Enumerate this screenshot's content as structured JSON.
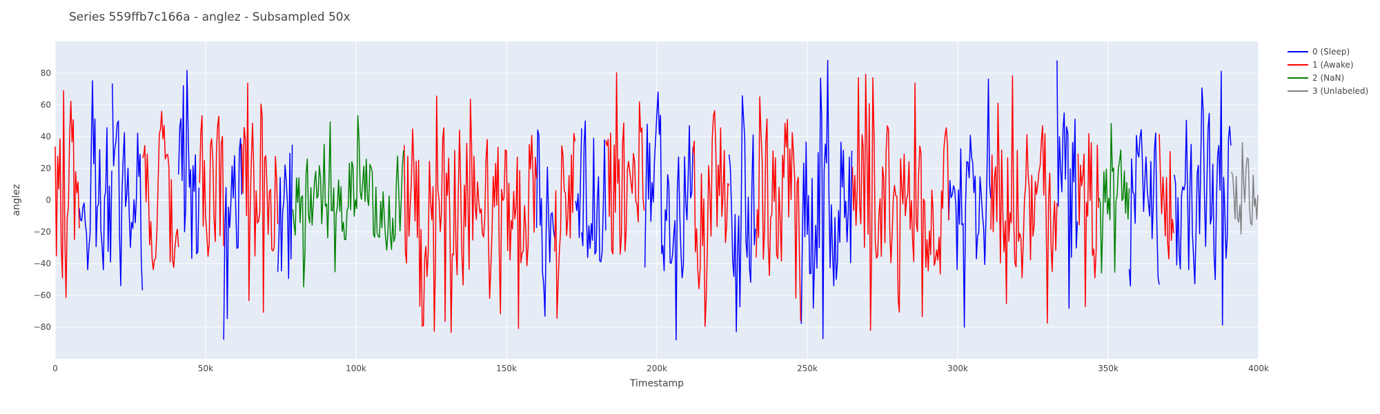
{
  "chart_data": {
    "type": "line",
    "title": "Series 559ffb7c166a - anglez - Subsampled 50x",
    "xlabel": "Timestamp",
    "ylabel": "anglez",
    "xlim": [
      0,
      400000
    ],
    "ylim": [
      -100,
      100
    ],
    "x_ticks": [
      {
        "value": 0,
        "label": "0"
      },
      {
        "value": 50000,
        "label": "50k"
      },
      {
        "value": 100000,
        "label": "100k"
      },
      {
        "value": 150000,
        "label": "150k"
      },
      {
        "value": 200000,
        "label": "200k"
      },
      {
        "value": 250000,
        "label": "250k"
      },
      {
        "value": 300000,
        "label": "300k"
      },
      {
        "value": 350000,
        "label": "350k"
      },
      {
        "value": 400000,
        "label": "400k"
      }
    ],
    "y_ticks": [
      {
        "value": 80,
        "label": "80"
      },
      {
        "value": 60,
        "label": "60"
      },
      {
        "value": 40,
        "label": "40"
      },
      {
        "value": 20,
        "label": "20"
      },
      {
        "value": 0,
        "label": "0"
      },
      {
        "value": -20,
        "label": "−20"
      },
      {
        "value": -40,
        "label": "−40"
      },
      {
        "value": -60,
        "label": "−60"
      },
      {
        "value": -80,
        "label": "−80"
      }
    ],
    "grid": true,
    "legend_position": "right",
    "series": [
      {
        "name": "0 (Sleep)",
        "color": "#0000ff",
        "amplitude": 65,
        "segments": [
          [
            8000,
            19000
          ],
          [
            19000,
            29000
          ],
          [
            41000,
            48000
          ],
          [
            56000,
            62000
          ],
          [
            74000,
            79000
          ],
          [
            160000,
            166000
          ],
          [
            173000,
            175000
          ],
          [
            175000,
            183000
          ],
          [
            196000,
            212000
          ],
          [
            224000,
            233000
          ],
          [
            248000,
            265000
          ],
          [
            297000,
            311000
          ],
          [
            333000,
            340000
          ],
          [
            357000,
            367000
          ],
          [
            372000,
            391000
          ]
        ]
      },
      {
        "name": "1 (Awake)",
        "color": "#ff0000",
        "amplitude": 60,
        "segments": [
          [
            0,
            8000
          ],
          [
            29000,
            41000
          ],
          [
            48000,
            56000
          ],
          [
            62000,
            74000
          ],
          [
            116000,
            160000
          ],
          [
            166000,
            173000
          ],
          [
            183000,
            196000
          ],
          [
            212000,
            224000
          ],
          [
            233000,
            248000
          ],
          [
            265000,
            297000
          ],
          [
            311000,
            333000
          ],
          [
            340000,
            347000
          ],
          [
            367000,
            372000
          ]
        ]
      },
      {
        "name": "2 (NaN)",
        "color": "#008000",
        "amplitude": 35,
        "segments": [
          [
            79000,
            116000
          ],
          [
            347000,
            357000
          ]
        ]
      },
      {
        "name": "3 (Unlabeled)",
        "color": "#808080",
        "amplitude": 30,
        "segments": [
          [
            391000,
            400000
          ]
        ]
      }
    ]
  }
}
